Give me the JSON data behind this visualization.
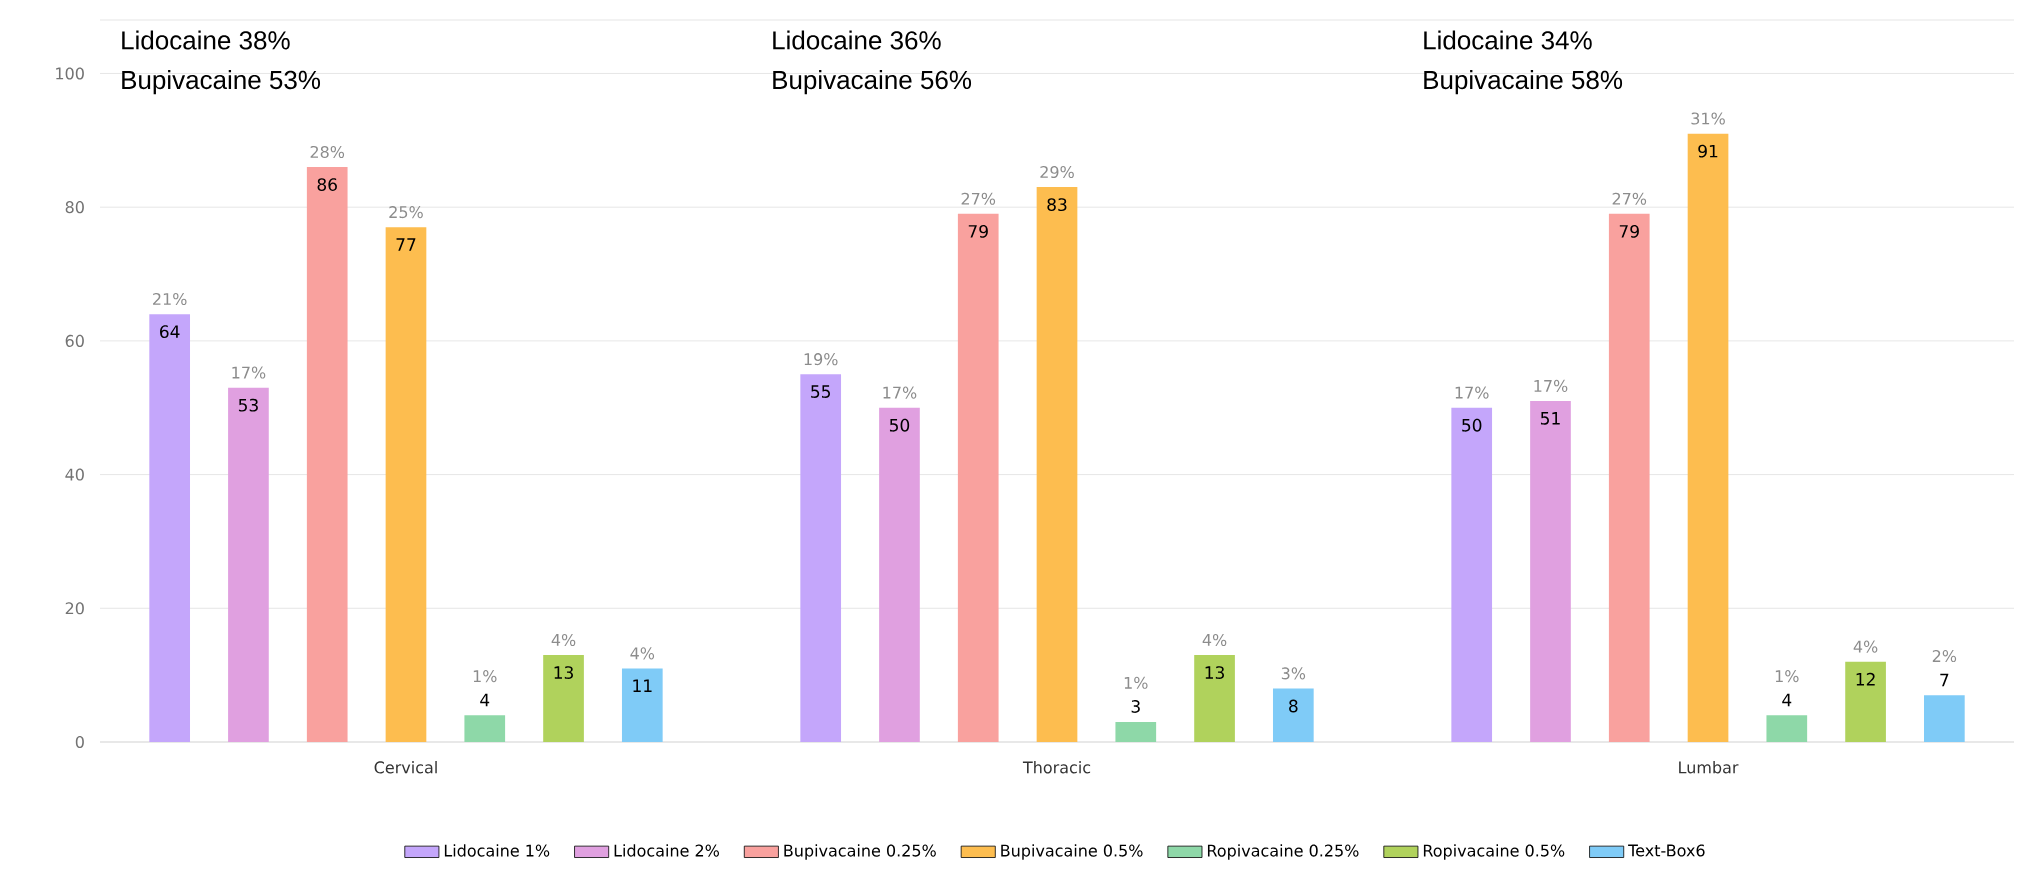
{
  "chart_data": {
    "type": "bar",
    "categories": [
      "Cervical",
      "Thoracic",
      "Lumbar"
    ],
    "series": [
      {
        "name": "Lidocaine 1%",
        "color": "#c4a6fb",
        "values": [
          64,
          55,
          50
        ],
        "value_labels": [
          "64",
          "55",
          "50"
        ]
      },
      {
        "name": "Lidocaine 2%",
        "color": "#e0a0e0",
        "values": [
          53,
          50,
          51
        ],
        "value_labels": [
          "53",
          "50",
          "51"
        ]
      },
      {
        "name": "Bupivacaine 0.25%",
        "color": "#f9a19e",
        "values": [
          86,
          79,
          79
        ],
        "value_labels": [
          "86",
          "79",
          "79"
        ]
      },
      {
        "name": "Bupivacaine 0.5%",
        "color": "#fdbd4f",
        "values": [
          77,
          83,
          91
        ],
        "value_labels": [
          "77",
          "83",
          "91"
        ]
      },
      {
        "name": "Ropivacaine 0.25%",
        "color": "#8ed8a8",
        "values": [
          4,
          3,
          4
        ],
        "value_labels": [
          "4",
          "3",
          "4"
        ]
      },
      {
        "name": "Ropivacaine 0.5%",
        "color": "#b0d25c",
        "values": [
          13,
          13,
          12
        ],
        "value_labels": [
          "13",
          "13",
          "12"
        ]
      },
      {
        "name": "Text-Box6",
        "color": "#7fcbf7",
        "values": [
          11,
          8,
          7
        ],
        "value_labels": [
          "11",
          "8",
          "7"
        ]
      }
    ],
    "ylim": [
      0,
      108
    ],
    "yticks": [
      0,
      20,
      40,
      60,
      80,
      100
    ],
    "grid": "y",
    "legend": "bottom",
    "annotations": [
      "Lidocaine 38%",
      "Bupivacaine 53%",
      "Lidocaine 36%",
      "Bupivacaine 56%",
      "Lidocaine 34%",
      "Bupivacaine 58%",
      "21%",
      "19%",
      "17%",
      "17%",
      "17%",
      "17%",
      "28%",
      "27%",
      "27%",
      "25%",
      "29%",
      "31%",
      "1%",
      "1%",
      "1%",
      "4%",
      "4%",
      "4%",
      "4%",
      "3%",
      "2%"
    ]
  }
}
